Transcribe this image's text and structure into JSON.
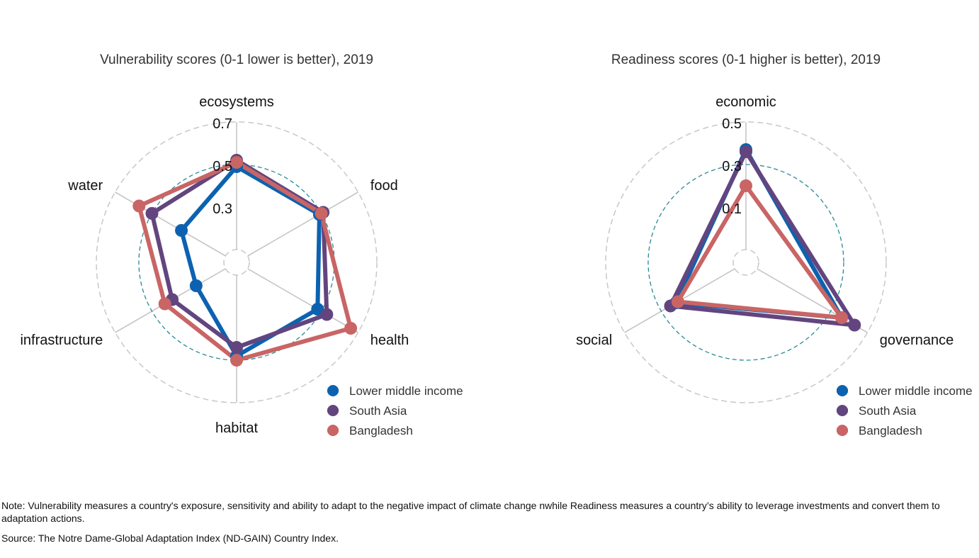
{
  "chart_data": [
    {
      "type": "radar",
      "title": "Vulnerability scores (0-1 lower is better), 2019",
      "axes": [
        "ecosystems",
        "food",
        "health",
        "habitat",
        "infrastructure",
        "water"
      ],
      "rlim": [
        0.1,
        0.7
      ],
      "ticks": [
        0.3,
        0.5,
        0.7
      ],
      "tick_labels": [
        "0.3",
        "0.5",
        "0.7"
      ],
      "series": [
        {
          "name": "Lower middle income",
          "color": "#0c62b0",
          "values": [
            0.49,
            0.49,
            0.48,
            0.48,
            0.26,
            0.34
          ]
        },
        {
          "name": "South Asia",
          "color": "#62457f",
          "values": [
            0.52,
            0.51,
            0.53,
            0.44,
            0.39,
            0.5
          ]
        },
        {
          "name": "Bangladesh",
          "color": "#c96565",
          "values": [
            0.51,
            0.5,
            0.66,
            0.5,
            0.43,
            0.57
          ]
        }
      ],
      "legend_position": "bottom-right"
    },
    {
      "type": "radar",
      "title": "Readiness scores (0-1 higher is better), 2019",
      "axes": [
        "economic",
        "governance",
        "social"
      ],
      "rlim": [
        -0.1,
        0.5
      ],
      "ticks": [
        0.1,
        0.3,
        0.5
      ],
      "tick_labels": [
        "0.1",
        "0.3",
        "0.5"
      ],
      "series": [
        {
          "name": "Lower middle income",
          "color": "#0c62b0",
          "values": [
            0.37,
            0.36,
            0.22
          ]
        },
        {
          "name": "South Asia",
          "color": "#62457f",
          "values": [
            0.36,
            0.43,
            0.25
          ]
        },
        {
          "name": "Bangladesh",
          "color": "#c96565",
          "values": [
            0.2,
            0.36,
            0.21
          ]
        }
      ],
      "legend_position": "bottom-right"
    }
  ],
  "note": "Note: Vulnerability measures a country's exposure, sensitivity and ability to adapt to the negative impact of climate change nwhile Readiness measures a country’s ability to leverage investments and convert them to adaptation actions.",
  "source": "Source: The Notre Dame-Global Adaptation Index (ND-GAIN) Country Index."
}
